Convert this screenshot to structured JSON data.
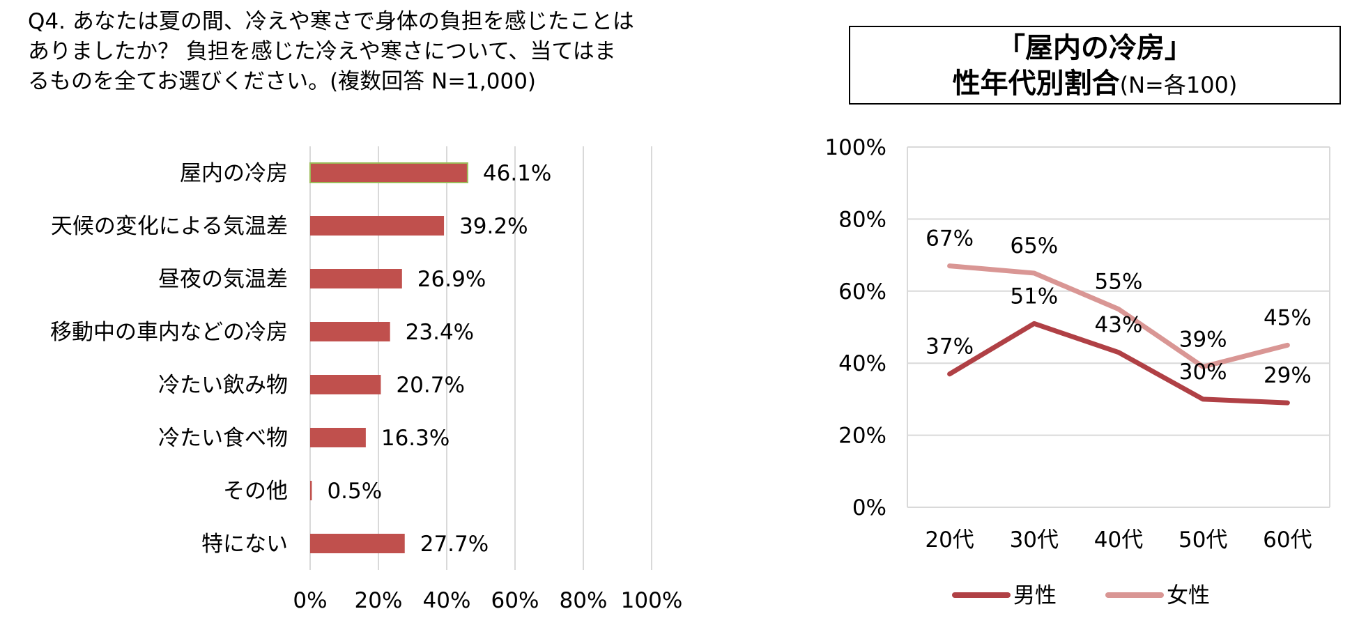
{
  "question": "Q4. あなたは夏の間、冷えや寒さで身体の負担を感じたことはありましたか？ 負担を感じた冷えや寒さについて、当てはまるものを全てお選びください。(複数回答 N=1,000)",
  "line_title": {
    "line1": "「屋内の冷房」",
    "line2_main": "性年代別割合",
    "line2_sub": "(N=各100)"
  },
  "colors": {
    "bar": "#c0504d",
    "male": "#b04045",
    "female": "#d99694",
    "grid": "#d9d9d9",
    "highlight_border": "#9bbb59"
  },
  "chart_data": [
    {
      "type": "bar",
      "orientation": "horizontal",
      "categories": [
        "屋内の冷房",
        "天候の変化による気温差",
        "昼夜の気温差",
        "移動中の車内などの冷房",
        "冷たい飲み物",
        "冷たい食べ物",
        "その他",
        "特にない"
      ],
      "values": [
        46.1,
        39.2,
        26.9,
        23.4,
        20.7,
        16.3,
        0.5,
        27.7
      ],
      "value_labels": [
        "46.1%",
        "39.2%",
        "26.9%",
        "23.4%",
        "20.7%",
        "16.3%",
        "0.5%",
        "27.7%"
      ],
      "xlim": [
        0,
        100
      ],
      "x_ticks": [
        "0%",
        "20%",
        "40%",
        "60%",
        "80%",
        "100%"
      ],
      "highlighted_category": "屋内の冷房",
      "grid": true
    },
    {
      "type": "line",
      "categories": [
        "20代",
        "30代",
        "40代",
        "50代",
        "60代"
      ],
      "series": [
        {
          "name": "男性",
          "values": [
            37,
            51,
            43,
            30,
            29
          ],
          "labels": [
            "37%",
            "51%",
            "43%",
            "30%",
            "29%"
          ]
        },
        {
          "name": "女性",
          "values": [
            67,
            65,
            55,
            39,
            45
          ],
          "labels": [
            "67%",
            "65%",
            "55%",
            "39%",
            "45%"
          ]
        }
      ],
      "ylim": [
        0,
        100
      ],
      "y_ticks": [
        "0%",
        "20%",
        "40%",
        "60%",
        "80%",
        "100%"
      ],
      "grid": true,
      "legend_position": "bottom"
    }
  ]
}
